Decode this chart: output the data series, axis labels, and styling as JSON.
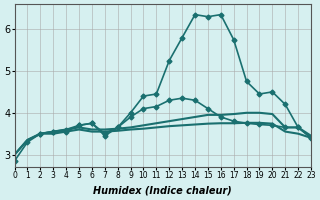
{
  "xlabel": "Humidex (Indice chaleur)",
  "ylabel": "",
  "background_color": "#d6f0f0",
  "grid_color": "#aaaaaa",
  "line_color": "#1a7070",
  "xlim": [
    0,
    23
  ],
  "ylim": [
    2.7,
    6.6
  ],
  "yticks": [
    3,
    4,
    5,
    6
  ],
  "xtick_labels": [
    "0",
    "1",
    "2",
    "3",
    "4",
    "5",
    "6",
    "7",
    "8",
    "9",
    "10",
    "11",
    "12",
    "13",
    "14",
    "15",
    "16",
    "17",
    "18",
    "19",
    "20",
    "21",
    "22",
    "23"
  ],
  "series": [
    {
      "x": [
        0,
        1,
        2,
        3,
        4,
        5,
        6,
        7,
        8,
        9,
        10,
        11,
        12,
        13,
        14,
        15,
        16,
        17,
        18,
        19,
        20,
        21,
        22,
        23
      ],
      "y": [
        2.85,
        3.3,
        3.5,
        3.55,
        3.55,
        3.7,
        3.75,
        3.45,
        3.65,
        4.0,
        4.4,
        4.45,
        5.25,
        5.8,
        6.35,
        6.3,
        6.35,
        5.75,
        4.75,
        4.45,
        4.5,
        4.2,
        3.65,
        3.4
      ],
      "marker": "D",
      "markersize": 2.5,
      "linewidth": 1.2
    },
    {
      "x": [
        0,
        1,
        2,
        3,
        4,
        5,
        6,
        7,
        8,
        9,
        10,
        11,
        12,
        13,
        14,
        15,
        16,
        17,
        18,
        19,
        20,
        21,
        22,
        23
      ],
      "y": [
        3.0,
        3.35,
        3.5,
        3.55,
        3.6,
        3.65,
        3.6,
        3.6,
        3.62,
        3.65,
        3.7,
        3.75,
        3.8,
        3.85,
        3.9,
        3.95,
        3.95,
        3.97,
        4.0,
        4.0,
        3.97,
        3.65,
        3.65,
        3.45
      ],
      "marker": null,
      "markersize": 0,
      "linewidth": 1.5
    },
    {
      "x": [
        0,
        1,
        2,
        3,
        4,
        5,
        6,
        7,
        8,
        9,
        10,
        11,
        12,
        13,
        14,
        15,
        16,
        17,
        18,
        19,
        20,
        21,
        22,
        23
      ],
      "y": [
        3.0,
        3.35,
        3.5,
        3.5,
        3.55,
        3.6,
        3.55,
        3.55,
        3.57,
        3.6,
        3.62,
        3.65,
        3.68,
        3.7,
        3.72,
        3.74,
        3.75,
        3.75,
        3.76,
        3.76,
        3.74,
        3.55,
        3.5,
        3.4
      ],
      "marker": null,
      "markersize": 0,
      "linewidth": 1.5
    },
    {
      "x": [
        2,
        3,
        4,
        5,
        6,
        7,
        8,
        9,
        10,
        11,
        12,
        13,
        14,
        15,
        16,
        17,
        18,
        19,
        20,
        21,
        22,
        23
      ],
      "y": [
        3.5,
        3.55,
        3.6,
        3.7,
        3.75,
        3.5,
        3.65,
        3.9,
        4.1,
        4.15,
        4.3,
        4.35,
        4.3,
        4.1,
        3.9,
        3.8,
        3.75,
        3.72,
        3.7,
        3.65,
        3.65,
        3.4
      ],
      "marker": "D",
      "markersize": 2.5,
      "linewidth": 1.2
    }
  ]
}
